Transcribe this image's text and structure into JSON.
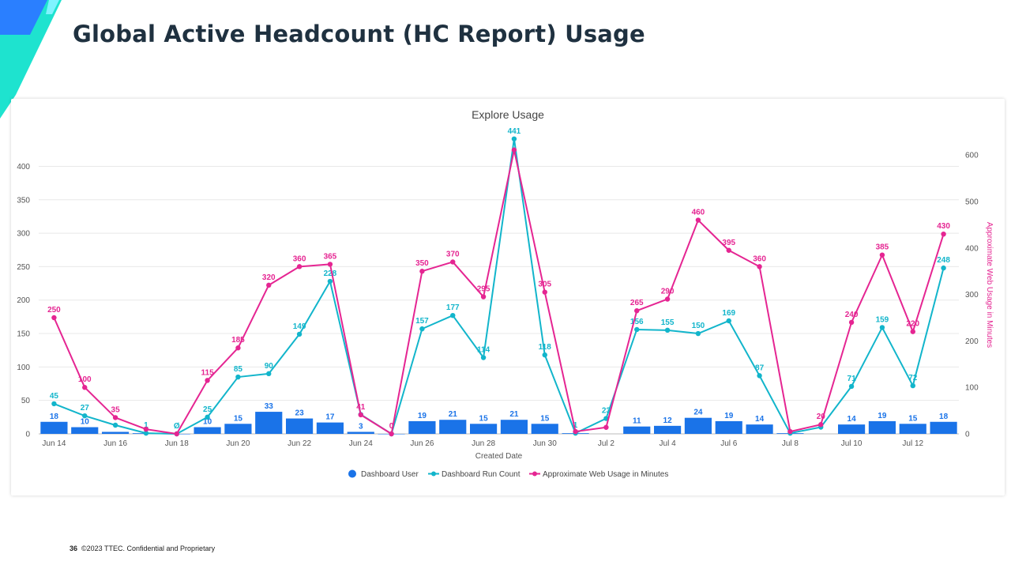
{
  "slide": {
    "title": "Global Active Headcount (HC Report) Usage",
    "page_number": "36",
    "footer": "©2023 TTEC. Confidential and Proprietary"
  },
  "colors": {
    "bar": "#1a73e8",
    "run": "#12b5cb",
    "web": "#e52592",
    "title": "#1f3140",
    "accent_teal": "#00d8c8",
    "accent_blue": "#1f5fff"
  },
  "chart_data": {
    "type": "bar",
    "title": "Explore Usage",
    "xlabel": "Created Date",
    "ylabel_left": "",
    "ylabel_right": "Approximate Web Usage in Minutes",
    "x": [
      "Jun 14",
      "Jun 15",
      "Jun 16",
      "Jun 17",
      "Jun 18",
      "Jun 19",
      "Jun 20",
      "Jun 21",
      "Jun 22",
      "Jun 23",
      "Jun 24",
      "Jun 25",
      "Jun 26",
      "Jun 27",
      "Jun 28",
      "Jun 29",
      "Jun 30",
      "Jul 1",
      "Jul 2",
      "Jul 3",
      "Jul 4",
      "Jul 5",
      "Jul 6",
      "Jul 7",
      "Jul 8",
      "Jul 9",
      "Jul 10",
      "Jul 11",
      "Jul 12",
      "Jul 13"
    ],
    "x_tick_labels": [
      "Jun 14",
      "",
      "Jun 16",
      "",
      "Jun 18",
      "",
      "Jun 20",
      "",
      "Jun 22",
      "",
      "Jun 24",
      "",
      "Jun 26",
      "",
      "Jun 28",
      "",
      "Jun 30",
      "",
      "Jul 2",
      "",
      "Jul 4",
      "",
      "Jul 6",
      "",
      "Jul 8",
      "",
      "Jul 10",
      "",
      "Jul 12",
      ""
    ],
    "y_left_ticks": [
      0,
      50,
      100,
      150,
      200,
      250,
      300,
      350,
      400
    ],
    "y_left_range": [
      0,
      400
    ],
    "y_right_ticks": [
      0,
      100,
      200,
      300,
      400,
      500,
      600
    ],
    "y_right_range": [
      0,
      600
    ],
    "grid": true,
    "legend_position": "bottom",
    "series": [
      {
        "name": "Dashboard User",
        "type": "bar",
        "axis": "left",
        "values": [
          18,
          10,
          3,
          1,
          0,
          10,
          15,
          33,
          23,
          17,
          3,
          0,
          19,
          21,
          15,
          21,
          15,
          1,
          null,
          11,
          12,
          24,
          19,
          14,
          1,
          null,
          14,
          19,
          15,
          18
        ],
        "labels": [
          "18",
          "10",
          "",
          "",
          "",
          "10",
          "15",
          "33",
          "23",
          "17",
          "3",
          "",
          "19",
          "21",
          "15",
          "21",
          "15",
          "",
          "",
          "11",
          "12",
          "24",
          "19",
          "14",
          "",
          "",
          "14",
          "19",
          "15",
          "18"
        ]
      },
      {
        "name": "Dashboard Run Count",
        "type": "line",
        "axis": "left",
        "values": [
          45,
          27,
          13,
          1,
          0,
          25,
          85,
          90,
          149,
          228,
          29,
          0,
          157,
          177,
          114,
          441,
          118,
          1,
          23,
          156,
          155,
          150,
          169,
          87,
          1,
          10,
          71,
          159,
          72,
          248
        ],
        "labels": [
          "45",
          "27",
          "",
          "1",
          "Ø",
          "25",
          "85",
          "90",
          "149",
          "228",
          "",
          "",
          "157",
          "177",
          "114",
          "441",
          "118",
          "1",
          "23",
          "156",
          "155",
          "150",
          "169",
          "87",
          "",
          "",
          "71",
          "159",
          "72",
          "248"
        ]
      },
      {
        "name": "Approximate Web Usage in Minutes",
        "type": "line",
        "axis": "right",
        "values": [
          250,
          100,
          35,
          10,
          0,
          115,
          185,
          320,
          360,
          365,
          41,
          0,
          350,
          370,
          295,
          611,
          305,
          5,
          14,
          265,
          290,
          460,
          395,
          360,
          5,
          20,
          240,
          385,
          220,
          430
        ],
        "labels": [
          "250",
          "100",
          "35",
          "",
          "",
          "115",
          "185",
          "320",
          "360",
          "365",
          "41",
          "0",
          "350",
          "370",
          "295",
          "",
          "305",
          "",
          "",
          "265",
          "290",
          "460",
          "395",
          "360",
          "",
          "20",
          "240",
          "385",
          "220",
          "430"
        ]
      }
    ]
  }
}
